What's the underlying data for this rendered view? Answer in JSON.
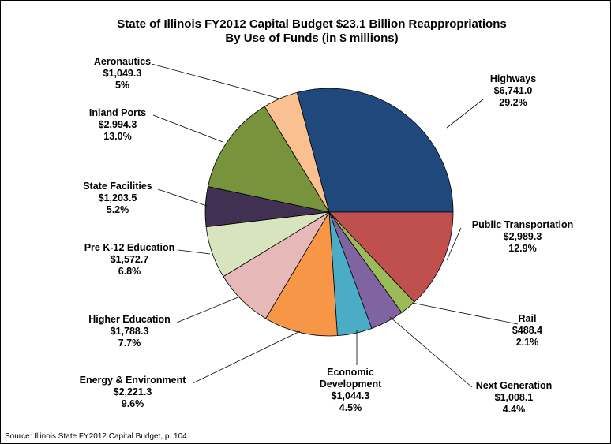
{
  "chart_data": {
    "type": "pie",
    "title_lines": [
      "State of Illinois FY2012 Capital Budget $23.1 Billion Reappropriations",
      "By Use of Funds (in $ millions)"
    ],
    "slices": [
      {
        "name": "Highways",
        "value_label": "$6,741.0",
        "pct_label": "29.2%",
        "value": 6741.0,
        "percent": 29.2,
        "color": "#1F497D"
      },
      {
        "name": "Public Transportation",
        "value_label": "$2,989.3",
        "pct_label": "12.9%",
        "value": 2989.3,
        "percent": 12.9,
        "color": "#C0504D"
      },
      {
        "name": "Rail",
        "value_label": "$488.4",
        "pct_label": "2.1%",
        "value": 488.4,
        "percent": 2.1,
        "color": "#9BBB59"
      },
      {
        "name": "Next Generation",
        "value_label": "$1,008.1",
        "pct_label": "4.4%",
        "value": 1008.1,
        "percent": 4.4,
        "color": "#8064A2"
      },
      {
        "name": "Economic Development",
        "value_label": "$1,044.3",
        "pct_label": "4.5%",
        "value": 1044.3,
        "percent": 4.5,
        "color": "#4BACC6"
      },
      {
        "name": "Energy & Environment",
        "value_label": "$2,221.3",
        "pct_label": "9.6%",
        "value": 2221.3,
        "percent": 9.6,
        "color": "#F79646"
      },
      {
        "name": "Higher Education",
        "value_label": "$1,788.3",
        "pct_label": "7.7%",
        "value": 1788.3,
        "percent": 7.7,
        "color": "#E6B9B8"
      },
      {
        "name": "Pre K-12 Education",
        "value_label": "$1,572.7",
        "pct_label": "6.8%",
        "value": 1572.7,
        "percent": 6.8,
        "color": "#D7E4BD"
      },
      {
        "name": "State Facilities",
        "value_label": "$1,203.5",
        "pct_label": "5.2%",
        "value": 1203.5,
        "percent": 5.2,
        "color": "#403152"
      },
      {
        "name": "Inland Ports",
        "value_label": "$2,994.3",
        "pct_label": "13.0%",
        "value": 2994.3,
        "percent": 13.0,
        "color": "#77933C"
      },
      {
        "name": "Aeronautics",
        "value_label": "$1,049.3",
        "pct_label": "5%",
        "value": 1049.3,
        "percent": 4.5,
        "color": "#FAC090"
      }
    ],
    "source": "Source: Illinois State FY2012 Capital Budget, p. 104."
  }
}
